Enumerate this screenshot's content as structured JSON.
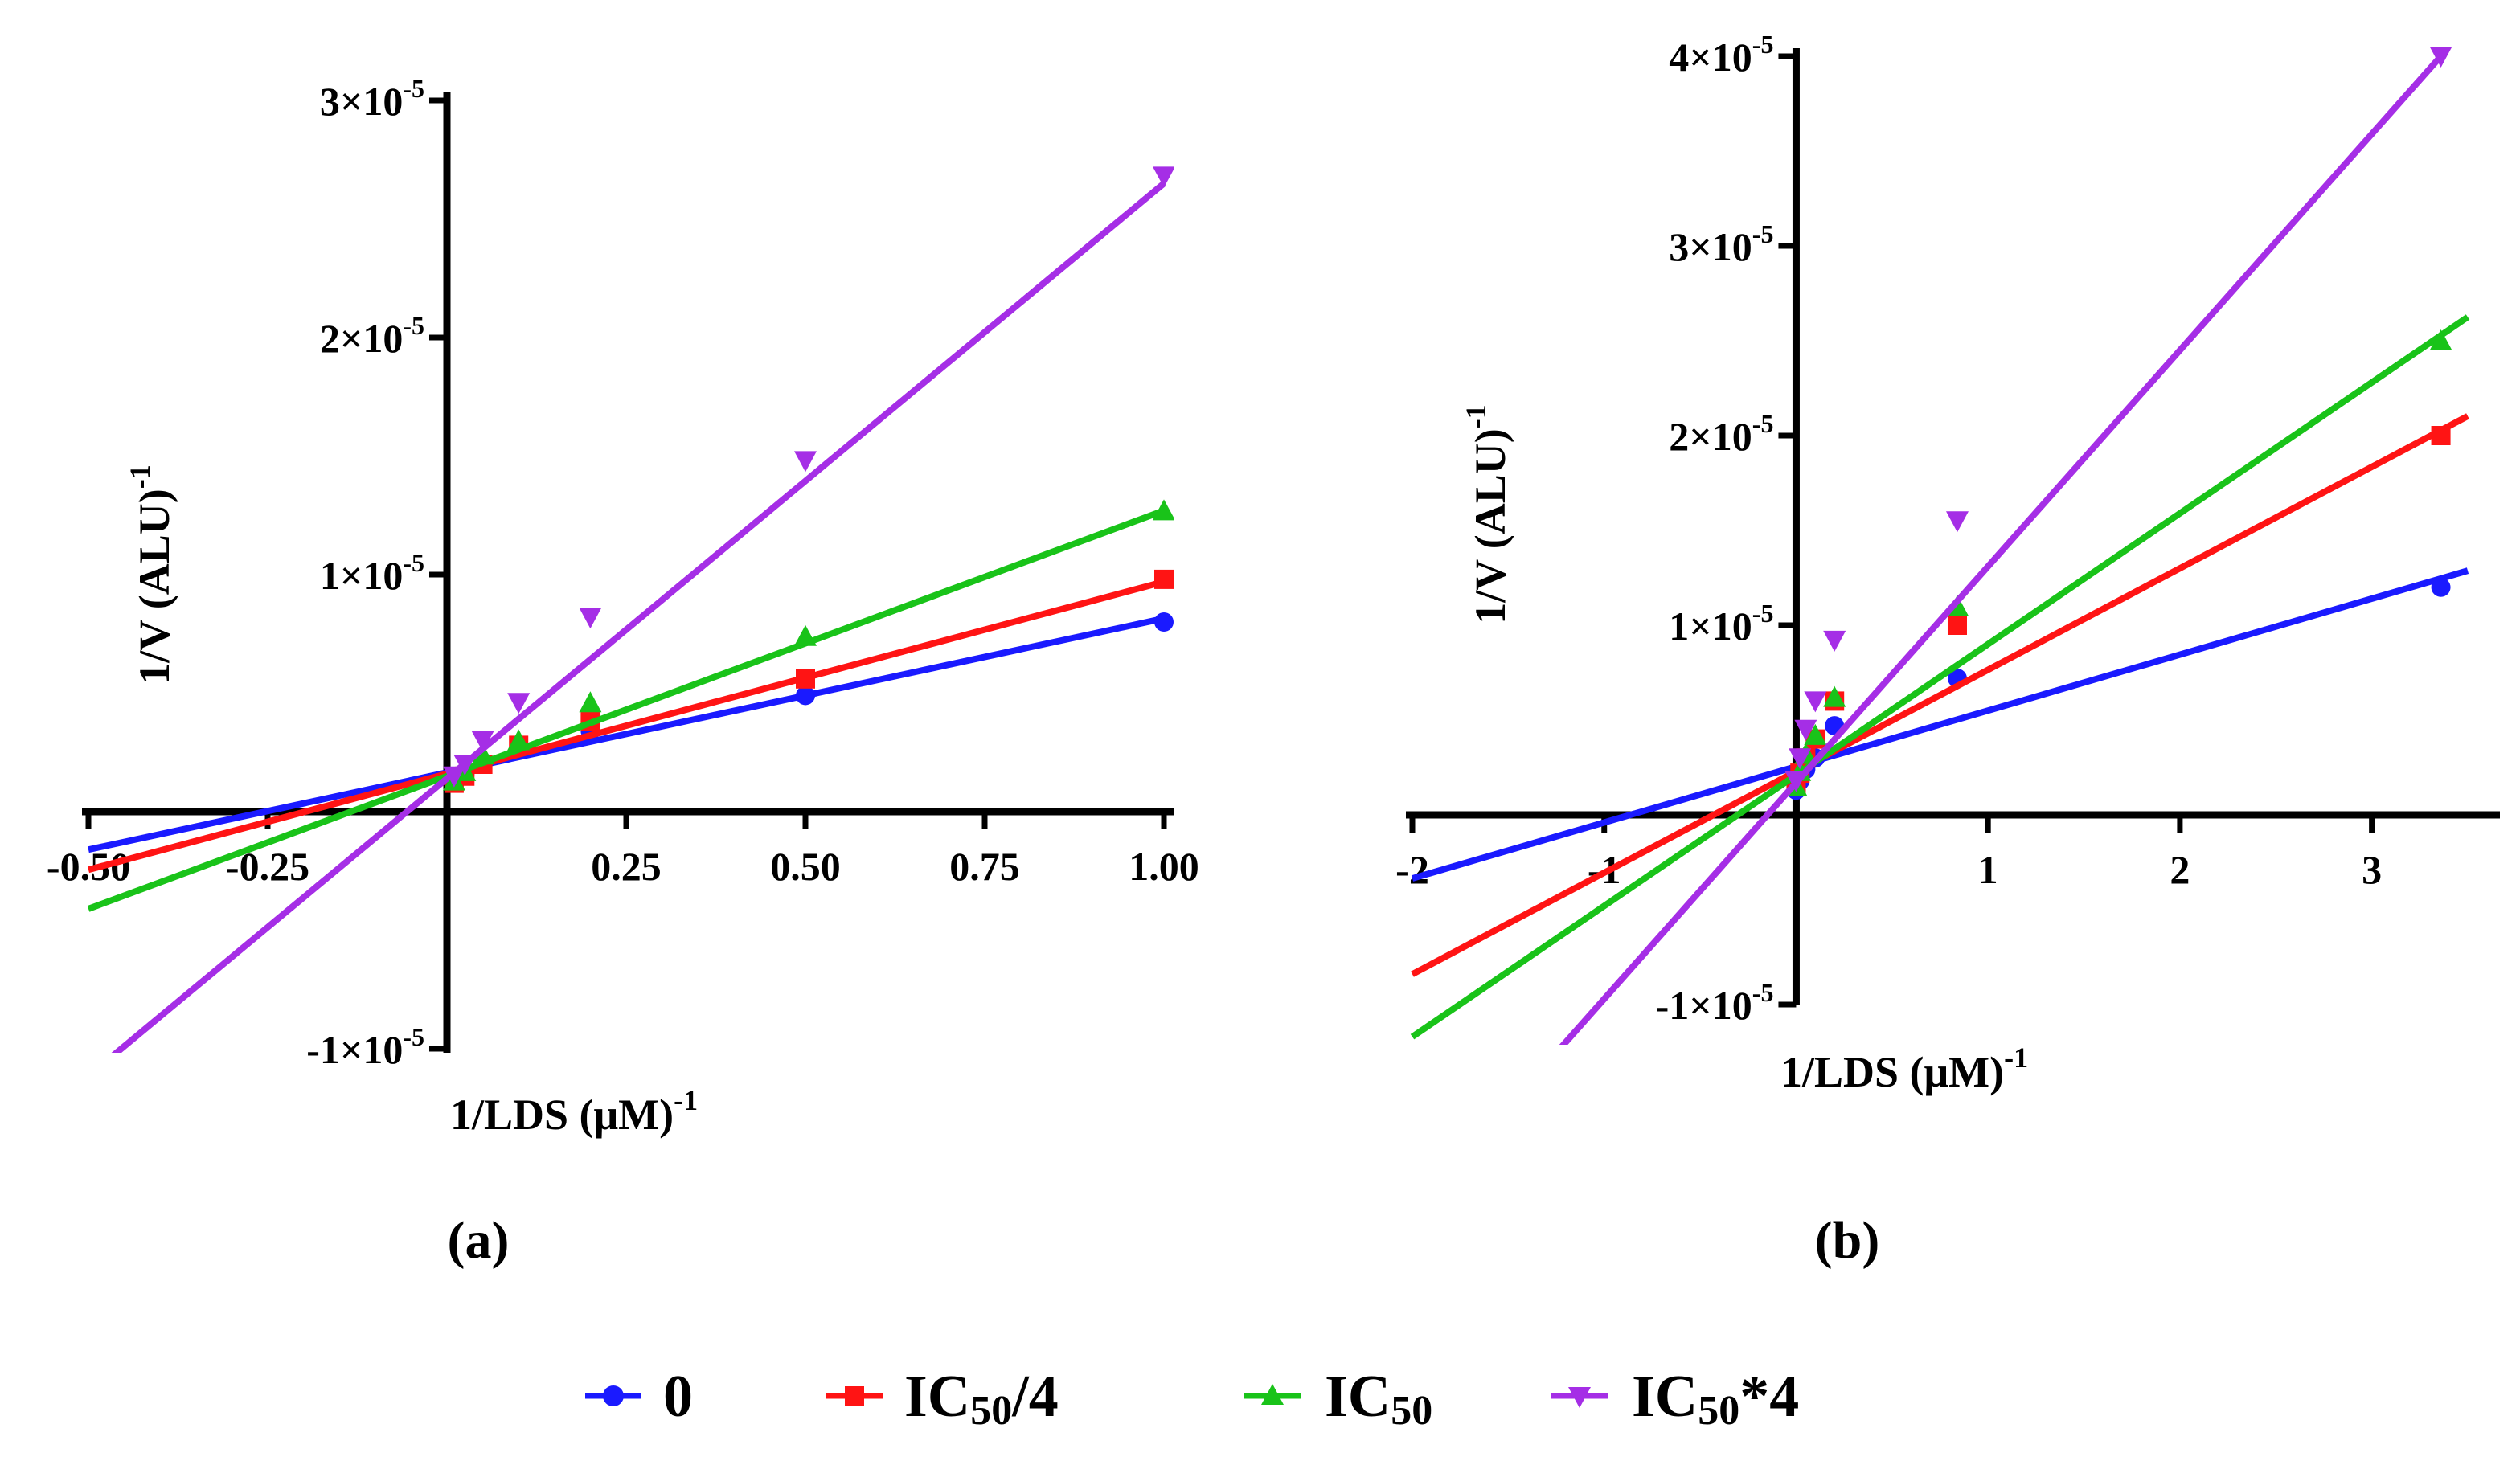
{
  "legend": [
    {
      "label": "0",
      "color": "#1a1aff",
      "marker": "circle"
    },
    {
      "label": "IC50/4",
      "color": "#ff1414",
      "marker": "square"
    },
    {
      "label": "IC50",
      "color": "#19c319",
      "marker": "triangle-up"
    },
    {
      "label": "IC50*4",
      "color": "#a52ee6",
      "marker": "triangle-down"
    }
  ],
  "chart_data": [
    {
      "type": "scatter",
      "panel_label": "(a)",
      "xlabel": "1/LDS (μM)",
      "xlabel_exponent": "-1",
      "ylabel": "1/V (ALU)",
      "ylabel_exponent": "-1",
      "xlim": [
        -0.5,
        1.0
      ],
      "ylim": [
        -1e-05,
        3e-05
      ],
      "x_ticks": [
        -0.5,
        -0.25,
        0.25,
        0.5,
        0.75,
        1.0
      ],
      "x_tick_labels": [
        "-0.50",
        "-0.25",
        "0.25",
        "0.50",
        "0.75",
        "1.00"
      ],
      "y_ticks": [
        -1e-05,
        1e-05,
        2e-05,
        3e-05
      ],
      "y_tick_labels": [
        {
          "mantissa": "-1",
          "exponent": "-5"
        },
        {
          "mantissa": "1",
          "exponent": "-5"
        },
        {
          "mantissa": "2",
          "exponent": "-5"
        },
        {
          "mantissa": "3",
          "exponent": "-5"
        }
      ],
      "series": [
        {
          "name": "0",
          "x": [
            0.01,
            0.025,
            0.05,
            0.1,
            0.2,
            0.5,
            1.0
          ],
          "y": [
            1.3e-06,
            1.6e-06,
            2.1e-06,
            2.7e-06,
            3.4e-06,
            4.9e-06,
            8e-06
          ],
          "fit": {
            "slope": 6.5e-06,
            "intercept": 1.65e-06,
            "x_range": [
              -0.5,
              1.0
            ]
          }
        },
        {
          "name": "IC50/4",
          "x": [
            0.01,
            0.025,
            0.05,
            0.1,
            0.2,
            0.5,
            1.0
          ],
          "y": [
            1.2e-06,
            1.5e-06,
            2e-06,
            2.8e-06,
            3.8e-06,
            5.6e-06,
            9.8e-06
          ],
          "fit": {
            "slope": 8.1e-06,
            "intercept": 1.6e-06,
            "x_range": [
              -0.5,
              1.0
            ]
          }
        },
        {
          "name": "IC50",
          "x": [
            0.01,
            0.025,
            0.05,
            0.1,
            0.2,
            0.5,
            1.0
          ],
          "y": [
            1.3e-06,
            1.7e-06,
            2.4e-06,
            3e-06,
            4.6e-06,
            7.4e-06,
            1.27e-05
          ],
          "fit": {
            "slope": 1.12e-05,
            "intercept": 1.5e-06,
            "x_range": [
              -0.5,
              1.0
            ]
          }
        },
        {
          "name": "IC50*4",
          "x": [
            0.01,
            0.025,
            0.05,
            0.1,
            0.2,
            0.5,
            1.0
          ],
          "y": [
            1.5e-06,
            2e-06,
            3e-06,
            4.6e-06,
            8.2e-06,
            1.48e-05,
            2.68e-05
          ],
          "fit": {
            "slope": 2.51e-05,
            "intercept": 1.4e-06,
            "x_range": [
              -0.5,
              1.0
            ]
          }
        }
      ]
    },
    {
      "type": "scatter",
      "panel_label": "(b)",
      "xlabel": "1/LDS (μM)",
      "xlabel_exponent": "-1",
      "ylabel": "1/V (ALU)",
      "ylabel_exponent": "-1",
      "xlim": [
        -2,
        3.5
      ],
      "ylim": [
        -1e-05,
        4e-05
      ],
      "x_ticks": [
        -2,
        -1,
        1,
        2,
        3
      ],
      "x_tick_labels": [
        "-2",
        "-1",
        "1",
        "2",
        "3"
      ],
      "y_ticks": [
        -1e-05,
        1e-05,
        2e-05,
        3e-05,
        4e-05
      ],
      "y_tick_labels": [
        {
          "mantissa": "-1",
          "exponent": "-5"
        },
        {
          "mantissa": "1",
          "exponent": "-5"
        },
        {
          "mantissa": "2",
          "exponent": "-5"
        },
        {
          "mantissa": "3",
          "exponent": "-5"
        },
        {
          "mantissa": "4",
          "exponent": "-5"
        }
      ],
      "series": [
        {
          "name": "0",
          "x": [
            0.0,
            0.02,
            0.05,
            0.1,
            0.2,
            0.84,
            3.36
          ],
          "y": [
            1.3e-06,
            1.8e-06,
            2.4e-06,
            3e-06,
            4.7e-06,
            7.2e-06,
            1.2e-05
          ],
          "fit": {
            "slope": 2.95e-06,
            "intercept": 2.55e-06,
            "x_range": [
              -2,
              3.5
            ]
          }
        },
        {
          "name": "IC50/4",
          "x": [
            0.0,
            0.02,
            0.05,
            0.1,
            0.2,
            0.84,
            3.36
          ],
          "y": [
            1.5e-06,
            2.2e-06,
            3e-06,
            4e-06,
            6e-06,
            1e-05,
            2e-05
          ],
          "fit": {
            "slope": 5.35e-06,
            "intercept": 2.3e-06,
            "x_range": [
              -2,
              3.5
            ]
          }
        },
        {
          "name": "IC50",
          "x": [
            0.0,
            0.02,
            0.05,
            0.1,
            0.2,
            0.84,
            3.36
          ],
          "y": [
            1.5e-06,
            2.3e-06,
            3.2e-06,
            4.2e-06,
            6.2e-06,
            1.1e-05,
            2.5e-05
          ],
          "fit": {
            "slope": 6.9e-06,
            "intercept": 2.1e-06,
            "x_range": [
              -2,
              3.5
            ]
          }
        },
        {
          "name": "IC50*4",
          "x": [
            0.0,
            0.02,
            0.05,
            0.1,
            0.2,
            0.84,
            3.36
          ],
          "y": [
            1.8e-06,
            3e-06,
            4.5e-06,
            6e-06,
            9.2e-06,
            1.55e-05,
            4e-05
          ],
          "fit": {
            "slope": 1.14e-05,
            "intercept": 1.7e-06,
            "x_range": [
              -1.4,
              3.36
            ]
          }
        }
      ]
    }
  ]
}
